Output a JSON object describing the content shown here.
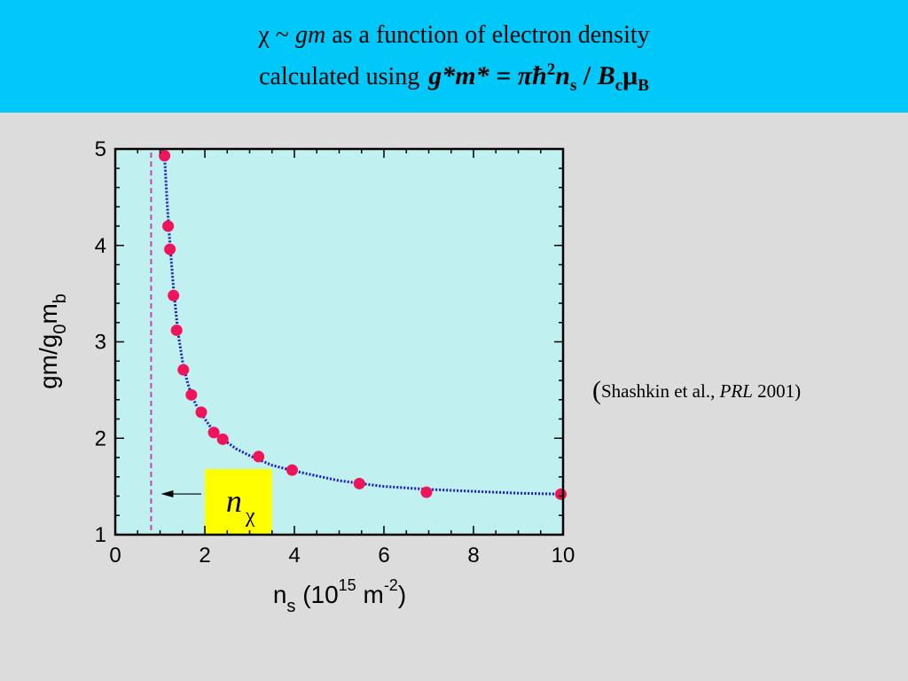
{
  "slide": {
    "title": {
      "chi": "χ",
      "tilde": " ~ ",
      "gm": "gm",
      "rest": " as a function of electron density",
      "line2_text": "calculated using",
      "formula_lhs": "g*m* = πħ",
      "formula_sup": "2",
      "formula_n": "n",
      "formula_sub_s": "s",
      "formula_div": " / ",
      "formula_B": "B",
      "formula_sub_c": "c",
      "formula_mu": "μ",
      "formula_sub_B": "B"
    },
    "citation": {
      "open": "(",
      "authors": "Shashkin et al., ",
      "journal": "PRL",
      "year": " 2001",
      "close": ")"
    },
    "colors": {
      "title_bar": "#00c8f8",
      "slide_bg": "#dcdcdc",
      "plot_bg": "#c0f0f0",
      "points": "#f0145a",
      "fit_line": "#1a1acc",
      "critical_line": "#cc44aa",
      "label_box": "#ffff00"
    }
  },
  "chart_data": {
    "type": "scatter",
    "x": [
      1.1,
      1.18,
      1.22,
      1.3,
      1.37,
      1.52,
      1.7,
      1.92,
      2.2,
      2.4,
      3.2,
      3.95,
      5.45,
      6.95,
      9.95
    ],
    "y": [
      4.93,
      4.2,
      3.96,
      3.48,
      3.12,
      2.71,
      2.45,
      2.27,
      2.06,
      1.99,
      1.81,
      1.67,
      1.53,
      1.44,
      1.42
    ],
    "fit_curve": {
      "x": [
        1.05,
        1.1,
        1.15,
        1.2,
        1.25,
        1.3,
        1.4,
        1.5,
        1.6,
        1.7,
        1.8,
        2.0,
        2.2,
        2.4,
        2.7,
        3.0,
        3.5,
        4.0,
        5.0,
        6.0,
        7.0,
        8.0,
        9.0,
        10.0
      ],
      "y": [
        5.0,
        4.93,
        4.5,
        4.15,
        3.85,
        3.55,
        3.1,
        2.8,
        2.6,
        2.45,
        2.35,
        2.2,
        2.07,
        1.99,
        1.89,
        1.82,
        1.72,
        1.66,
        1.56,
        1.5,
        1.47,
        1.45,
        1.43,
        1.42
      ]
    },
    "critical_density_x": 0.8,
    "xlabel": "n",
    "xlabel_sub": "s",
    "xlabel_units_open": " (10",
    "xlabel_units_sup": "15",
    "xlabel_units_mid": " m",
    "xlabel_units_sup2": "-2",
    "xlabel_units_close": ")",
    "ylabel_main": "gm/g",
    "ylabel_sub0": "0",
    "ylabel_m": "m",
    "ylabel_subb": "b",
    "xlim": [
      0,
      10
    ],
    "ylim": [
      1,
      5
    ],
    "xticks": [
      0,
      2,
      4,
      6,
      8,
      10
    ],
    "yticks": [
      1,
      2,
      3,
      4,
      5
    ],
    "grid": false,
    "annotation": {
      "n": "n",
      "sub": "χ",
      "arrow_to_x": 0.9,
      "box_x_range": [
        2.0,
        3.5
      ],
      "box_y_range": [
        1,
        1.68
      ]
    }
  }
}
